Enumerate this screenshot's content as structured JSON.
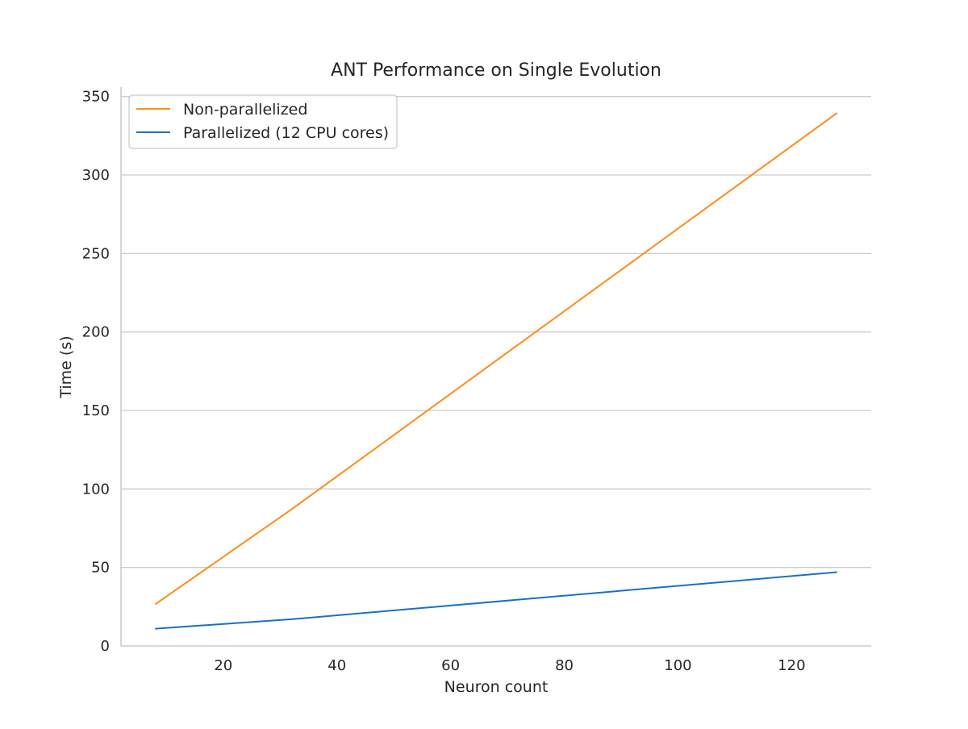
{
  "chart_data": {
    "type": "line",
    "title": "ANT Performance on Single Evolution",
    "xlabel": "Neuron count",
    "ylabel": "Time (s)",
    "xlim": [
      2,
      134
    ],
    "ylim": [
      0,
      356
    ],
    "x_ticks": [
      20,
      40,
      60,
      80,
      100,
      120
    ],
    "y_ticks": [
      0,
      50,
      100,
      150,
      200,
      250,
      300,
      350
    ],
    "grid": "horizontal",
    "legend_position": "top-left",
    "series": [
      {
        "name": "Non-parallelized",
        "color": "#ff8c1a",
        "x": [
          8,
          32,
          128
        ],
        "y": [
          26.5,
          87,
          339.5
        ]
      },
      {
        "name": "Parallelized (12 CPU cores)",
        "color": "#1a6fcc",
        "x": [
          8,
          32,
          128
        ],
        "y": [
          11,
          17,
          47
        ]
      }
    ]
  }
}
